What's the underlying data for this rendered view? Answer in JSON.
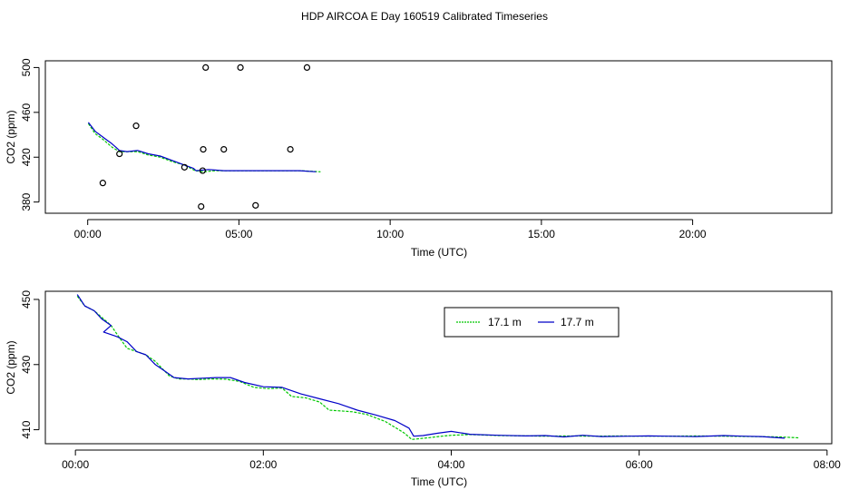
{
  "title": "HDP AIRCOA E  Day 160519  Calibrated Timeseries",
  "colors": {
    "series_17_1": "#00c800",
    "series_17_7": "#0000c8",
    "points": "#000000"
  },
  "chart_data": [
    {
      "type": "line",
      "panel": "top",
      "xlabel": "Time (UTC)",
      "ylabel": "CO2 (ppm)",
      "xlim": [
        -1.4,
        24.6
      ],
      "ylim": [
        370,
        506
      ],
      "xticks": [
        0,
        5,
        10,
        15,
        20
      ],
      "xtick_labels": [
        "00:00",
        "05:00",
        "10:00",
        "15:00",
        "20:00"
      ],
      "yticks": [
        380,
        420,
        460,
        500
      ],
      "ytick_labels": [
        "380",
        "420",
        "460",
        "500"
      ],
      "series": [
        {
          "name": "17.1 m",
          "color": "#00c800",
          "x": [
            0.02,
            0.25,
            0.5,
            0.8,
            1.05,
            1.3,
            1.65,
            2.0,
            2.4,
            2.8,
            3.2,
            3.55,
            3.85,
            4.2,
            4.8,
            5.5,
            6.2,
            7.0,
            7.7
          ],
          "y": [
            450,
            441,
            436,
            429,
            425,
            425,
            425,
            422,
            420,
            416,
            413,
            408,
            407,
            408,
            408,
            408,
            408,
            408,
            407
          ]
        },
        {
          "name": "17.7 m",
          "color": "#0000c8",
          "x": [
            0.02,
            0.25,
            0.4,
            0.6,
            0.8,
            1.05,
            1.3,
            1.65,
            2.0,
            2.4,
            2.8,
            3.2,
            3.5,
            3.58,
            4.0,
            4.5,
            5.0,
            5.5,
            6.0,
            6.5,
            7.0,
            7.55
          ],
          "y": [
            451,
            443,
            440,
            436,
            432,
            426,
            425,
            426,
            423,
            421,
            417,
            413,
            410,
            408,
            409,
            408,
            408,
            408,
            408,
            408,
            408,
            407
          ]
        },
        {
          "name": "points",
          "color": "#000000",
          "kind": "scatter",
          "x": [
            0.5,
            1.05,
            1.6,
            3.2,
            3.75,
            3.8,
            3.82,
            3.9,
            4.5,
            5.05,
            5.55,
            6.7,
            7.25
          ],
          "y": [
            397,
            423,
            448,
            411,
            376,
            408,
            427,
            500,
            427,
            500,
            377,
            427,
            500
          ]
        }
      ]
    },
    {
      "type": "line",
      "panel": "bottom",
      "xlabel": "Time (UTC)",
      "ylabel": "CO2 (ppm)",
      "xlim": [
        -0.32,
        8.05
      ],
      "ylim": [
        405.7,
        452.5
      ],
      "xticks": [
        0,
        2,
        4,
        6,
        8
      ],
      "xtick_labels": [
        "00:00",
        "02:00",
        "04:00",
        "06:00",
        "08:00"
      ],
      "yticks": [
        410,
        430,
        450
      ],
      "ytick_labels": [
        "410",
        "430",
        "450"
      ],
      "legend": {
        "position": "top-center",
        "entries": [
          "17.1 m",
          "17.7 m"
        ]
      },
      "series": [
        {
          "name": "17.1 m",
          "color": "#00c800",
          "x": [
            0.02,
            0.1,
            0.2,
            0.3,
            0.38,
            0.45,
            0.55,
            0.65,
            0.75,
            0.85,
            1.0,
            1.1,
            1.2,
            1.3,
            1.45,
            1.6,
            1.75,
            1.9,
            2.05,
            2.2,
            2.3,
            2.45,
            2.6,
            2.7,
            2.8,
            2.95,
            3.1,
            3.3,
            3.5,
            3.58,
            3.75,
            3.9,
            4.0,
            4.2,
            4.5,
            4.8,
            5.0,
            5.2,
            5.5,
            5.8,
            6.0,
            6.3,
            6.6,
            6.9,
            7.2,
            7.5,
            7.7
          ],
          "y": [
            451,
            448,
            446.5,
            444,
            442,
            439,
            435,
            434,
            433,
            431,
            426.5,
            425.6,
            425.6,
            425.4,
            425.6,
            425.5,
            424.8,
            423,
            422.6,
            422.8,
            420.2,
            419.8,
            418.5,
            416,
            415.8,
            415.5,
            414.7,
            412.5,
            409,
            407,
            407.5,
            408,
            408.3,
            408.5,
            408.2,
            408.1,
            408,
            408.1,
            408,
            408.1,
            408,
            408,
            408.1,
            408,
            407.9,
            407.8,
            407.5
          ]
        },
        {
          "name": "17.7 m",
          "color": "#0000c8",
          "x": [
            0.02,
            0.1,
            0.2,
            0.28,
            0.38,
            0.3,
            0.45,
            0.55,
            0.65,
            0.75,
            0.85,
            0.95,
            1.05,
            1.2,
            1.35,
            1.5,
            1.65,
            1.8,
            2.0,
            2.2,
            2.4,
            2.6,
            2.8,
            3.0,
            3.2,
            3.4,
            3.55,
            3.6,
            3.7,
            3.85,
            4.0,
            4.2,
            4.5,
            4.8,
            5.0,
            5.2,
            5.4,
            5.6,
            5.9,
            6.1,
            6.3,
            6.6,
            6.9,
            7.1,
            7.3,
            7.55
          ],
          "y": [
            451.5,
            448,
            446.5,
            444,
            442,
            440,
            438.5,
            437,
            434,
            433,
            430,
            428,
            426,
            425.6,
            425.8,
            426,
            426,
            424.5,
            423.2,
            423,
            421,
            419.5,
            418,
            416,
            414.5,
            412.8,
            410.5,
            408,
            408.2,
            408.9,
            409.5,
            408.6,
            408.3,
            408.1,
            408.2,
            407.8,
            408.3,
            407.9,
            408,
            408.1,
            408,
            407.9,
            408.2,
            408,
            407.9,
            407.4
          ]
        }
      ]
    }
  ]
}
